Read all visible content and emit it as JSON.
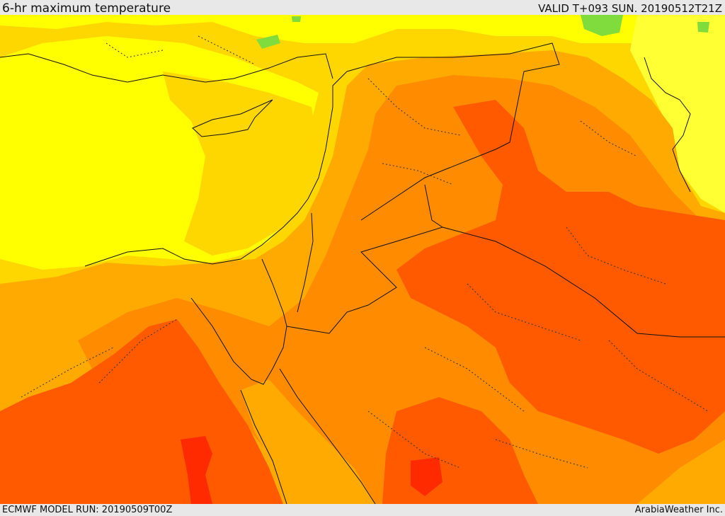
{
  "header": {
    "title": "6-hr maximum temperature",
    "valid": "VALID T+093 SUN. 20190512T21Z"
  },
  "footer": {
    "model_run": "ECMWF MODEL RUN: 20190509T00Z",
    "credit": "ArabiaWeather Inc."
  },
  "map": {
    "field": "temperature-shading",
    "palette": {
      "green": "#7fdc3c",
      "yellow_light": "#ffff33",
      "yellow": "#ffff00",
      "gold": "#ffd700",
      "amber": "#ffaa00",
      "orange": "#ff8c00",
      "red_orange": "#ff5a00",
      "red": "#ff2a00"
    },
    "border_color": "#111111"
  }
}
